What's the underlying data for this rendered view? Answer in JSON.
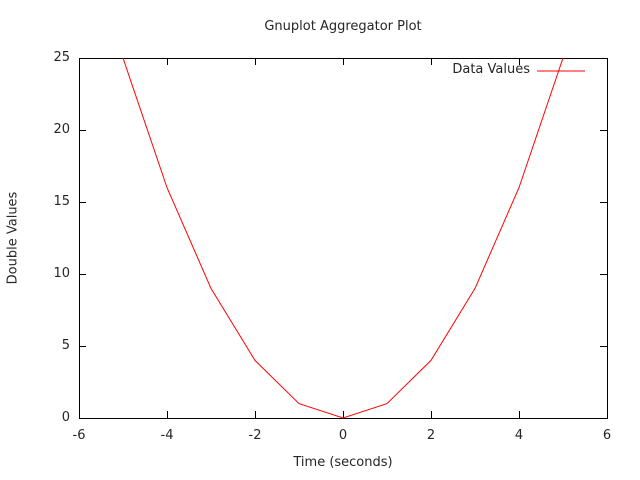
{
  "chart_data": {
    "type": "line",
    "title": "Gnuplot Aggregator Plot",
    "xlabel": "Time (seconds)",
    "ylabel": "Double Values",
    "grid": false,
    "legend_position": "top-right-inside",
    "xlim": [
      -6,
      6
    ],
    "ylim": [
      0,
      25
    ],
    "xticks": [
      -6,
      -4,
      -2,
      0,
      2,
      4,
      6
    ],
    "yticks": [
      0,
      5,
      10,
      15,
      20,
      25
    ],
    "series": [
      {
        "name": "Data Values",
        "color": "#ff0000",
        "x": [
          -5,
          -4,
          -3,
          -2,
          -1,
          0,
          1,
          2,
          3,
          4,
          5
        ],
        "y": [
          25,
          16,
          9,
          4,
          1,
          0,
          1,
          4,
          9,
          16,
          25
        ]
      }
    ]
  },
  "colors": {
    "background": "#ffffff",
    "text": "#262626",
    "axis": "#000000"
  }
}
